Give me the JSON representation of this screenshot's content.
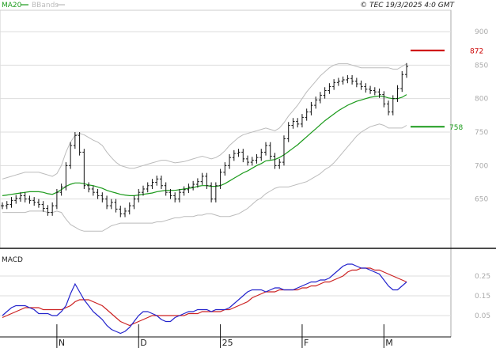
{
  "header": {
    "legend_ma": "MA20",
    "legend_bb": "BBands",
    "copyright": "© TEC 19/3/2025 4:0 GMT"
  },
  "colors": {
    "price": "#111111",
    "ma20": "#1a9a1a",
    "bbands": "#bbbbbb",
    "target_high": "#cc0000",
    "target_low": "#1a9a1a",
    "macd": "#2222cc",
    "signal": "#cc2222",
    "grid": "#dddddd",
    "axis_text": "#aaaaaa"
  },
  "chart_data": [
    {
      "type": "line",
      "panel": "price",
      "ylim": [
        600,
        900
      ],
      "y_ticks": [
        650,
        700,
        750,
        800,
        850,
        900
      ],
      "x_ticks": [
        "N",
        "D",
        "25",
        "F",
        "M"
      ],
      "x_tick_index": [
        12,
        30,
        48,
        66,
        84
      ],
      "targets": [
        {
          "label": "872",
          "value": 872
        },
        {
          "label": "758",
          "value": 758
        }
      ],
      "series": [
        {
          "key": "price",
          "values": [
            640,
            642,
            648,
            651,
            655,
            650,
            648,
            645,
            642,
            636,
            630,
            640,
            660,
            668,
            700,
            730,
            745,
            720,
            670,
            665,
            660,
            655,
            650,
            640,
            645,
            635,
            628,
            632,
            640,
            650,
            660,
            665,
            670,
            675,
            680,
            670,
            660,
            655,
            650,
            660,
            664,
            668,
            672,
            676,
            684,
            670,
            650,
            670,
            690,
            700,
            712,
            718,
            720,
            710,
            705,
            708,
            712,
            720,
            730,
            714,
            700,
            705,
            740,
            760,
            766,
            762,
            772,
            780,
            790,
            798,
            805,
            812,
            818,
            824,
            826,
            828,
            830,
            826,
            822,
            818,
            814,
            812,
            810,
            806,
            792,
            780,
            800,
            815,
            836,
            848
          ]
        },
        {
          "key": "ma20",
          "values": [
            655,
            656,
            657,
            658,
            659,
            660,
            661,
            661,
            661,
            660,
            658,
            657,
            660,
            664,
            669,
            672,
            674,
            674,
            673,
            671,
            670,
            668,
            666,
            663,
            661,
            659,
            657,
            656,
            655,
            655,
            656,
            657,
            658,
            659,
            661,
            662,
            663,
            663,
            663,
            664,
            665,
            666,
            667,
            669,
            670,
            670,
            669,
            669,
            670,
            673,
            677,
            681,
            685,
            689,
            692,
            696,
            700,
            703,
            707,
            708,
            709,
            712,
            716,
            721,
            726,
            731,
            737,
            743,
            749,
            755,
            761,
            767,
            772,
            777,
            782,
            786,
            790,
            793,
            796,
            798,
            800,
            802,
            803,
            804,
            803,
            801,
            800,
            800,
            802,
            806
          ]
        },
        {
          "key": "bb_upper",
          "values": [
            680,
            682,
            684,
            686,
            688,
            690,
            690,
            690,
            690,
            688,
            686,
            684,
            688,
            700,
            720,
            735,
            745,
            748,
            746,
            742,
            738,
            735,
            730,
            720,
            712,
            705,
            700,
            698,
            696,
            696,
            698,
            700,
            702,
            704,
            706,
            708,
            708,
            706,
            704,
            705,
            706,
            708,
            710,
            712,
            714,
            712,
            710,
            712,
            716,
            722,
            730,
            736,
            742,
            746,
            748,
            750,
            752,
            754,
            756,
            754,
            752,
            756,
            764,
            774,
            782,
            790,
            800,
            810,
            818,
            826,
            834,
            840,
            846,
            850,
            852,
            852,
            852,
            850,
            848,
            846,
            846,
            846,
            846,
            846,
            846,
            846,
            844,
            844,
            848,
            852
          ]
        },
        {
          "key": "bb_lower",
          "values": [
            630,
            630,
            630,
            630,
            630,
            630,
            632,
            632,
            632,
            632,
            630,
            630,
            632,
            630,
            620,
            612,
            608,
            604,
            602,
            602,
            602,
            602,
            602,
            606,
            610,
            612,
            614,
            614,
            614,
            614,
            614,
            614,
            614,
            614,
            616,
            616,
            618,
            620,
            622,
            622,
            624,
            624,
            624,
            626,
            626,
            628,
            628,
            626,
            624,
            624,
            624,
            626,
            628,
            632,
            636,
            642,
            648,
            652,
            658,
            662,
            666,
            668,
            668,
            668,
            670,
            672,
            674,
            676,
            680,
            684,
            688,
            694,
            698,
            704,
            712,
            720,
            728,
            736,
            744,
            750,
            754,
            758,
            760,
            762,
            760,
            756,
            756,
            756,
            756,
            760
          ]
        }
      ]
    },
    {
      "type": "line",
      "panel": "macd",
      "title": "MACD",
      "ylim": [
        -0.05,
        0.35
      ],
      "y_ticks": [
        0.05,
        0.15,
        0.25
      ],
      "series": [
        {
          "key": "macd",
          "values": [
            0.05,
            0.07,
            0.09,
            0.1,
            0.1,
            0.1,
            0.09,
            0.08,
            0.06,
            0.06,
            0.06,
            0.05,
            0.05,
            0.07,
            0.1,
            0.16,
            0.21,
            0.17,
            0.13,
            0.1,
            0.07,
            0.05,
            0.03,
            0.0,
            -0.02,
            -0.03,
            -0.04,
            -0.03,
            -0.01,
            0.02,
            0.05,
            0.07,
            0.07,
            0.06,
            0.05,
            0.03,
            0.02,
            0.02,
            0.04,
            0.05,
            0.06,
            0.07,
            0.07,
            0.08,
            0.08,
            0.08,
            0.07,
            0.08,
            0.08,
            0.08,
            0.09,
            0.11,
            0.13,
            0.15,
            0.17,
            0.18,
            0.18,
            0.18,
            0.17,
            0.18,
            0.19,
            0.19,
            0.18,
            0.18,
            0.18,
            0.19,
            0.2,
            0.21,
            0.22,
            0.22,
            0.23,
            0.23,
            0.24,
            0.26,
            0.28,
            0.3,
            0.31,
            0.31,
            0.3,
            0.29,
            0.29,
            0.28,
            0.27,
            0.26,
            0.23,
            0.2,
            0.18,
            0.18,
            0.2,
            0.22
          ]
        },
        {
          "key": "signal",
          "values": [
            0.04,
            0.05,
            0.06,
            0.07,
            0.08,
            0.09,
            0.09,
            0.09,
            0.09,
            0.08,
            0.08,
            0.08,
            0.08,
            0.08,
            0.09,
            0.1,
            0.12,
            0.13,
            0.13,
            0.13,
            0.12,
            0.11,
            0.1,
            0.08,
            0.06,
            0.04,
            0.02,
            0.01,
            0.0,
            0.01,
            0.02,
            0.03,
            0.04,
            0.05,
            0.05,
            0.05,
            0.05,
            0.05,
            0.05,
            0.05,
            0.05,
            0.06,
            0.06,
            0.06,
            0.07,
            0.07,
            0.07,
            0.07,
            0.07,
            0.08,
            0.08,
            0.09,
            0.1,
            0.11,
            0.12,
            0.14,
            0.15,
            0.16,
            0.17,
            0.17,
            0.17,
            0.18,
            0.18,
            0.18,
            0.18,
            0.18,
            0.19,
            0.19,
            0.2,
            0.2,
            0.21,
            0.22,
            0.22,
            0.23,
            0.24,
            0.25,
            0.27,
            0.28,
            0.28,
            0.29,
            0.29,
            0.29,
            0.28,
            0.28,
            0.27,
            0.26,
            0.25,
            0.24,
            0.23,
            0.22
          ]
        }
      ]
    }
  ]
}
